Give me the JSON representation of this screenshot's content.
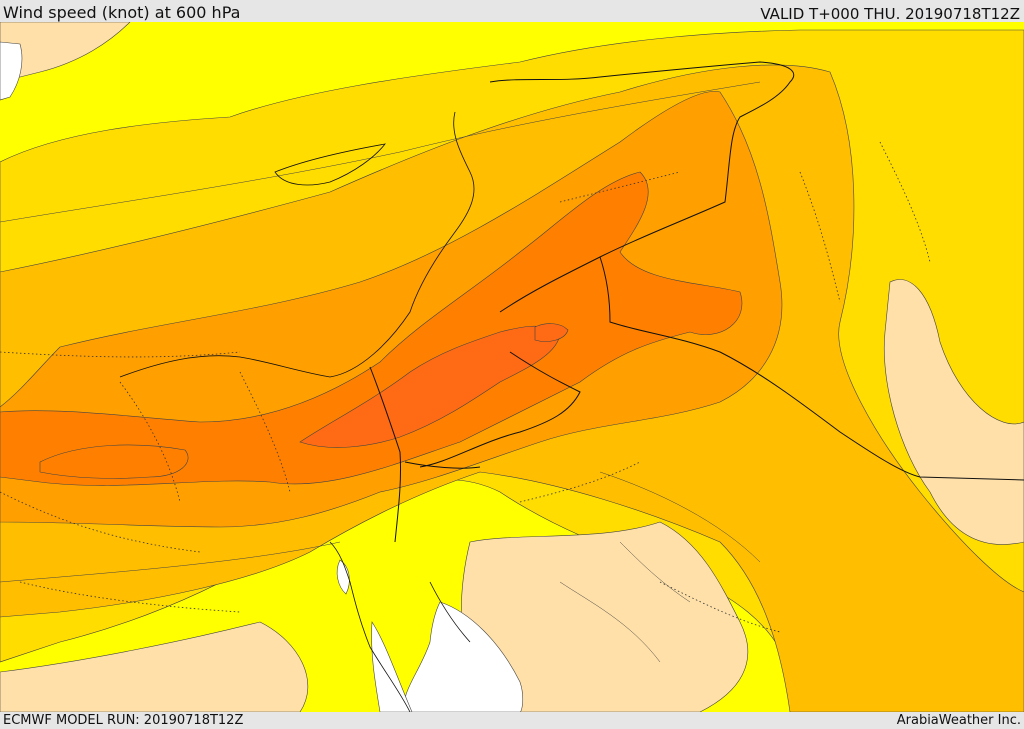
{
  "header": {
    "title": "Wind speed (knot) at 600 hPa",
    "valid": "VALID T+000 THU. 20190718T12Z"
  },
  "footer": {
    "model_run": "ECMWF MODEL RUN: 20190718T12Z",
    "brand": "ArabiaWeather Inc."
  },
  "map": {
    "colors": {
      "very_low": "#ffe0a8",
      "low": "#ffff00",
      "moderate": "#ffdd00",
      "elevated": "#ffbe00",
      "high": "#ff9f00",
      "very_high": "#ff8000",
      "highest": "#ff6a14",
      "water_or_missing": "#ffffff"
    }
  }
}
